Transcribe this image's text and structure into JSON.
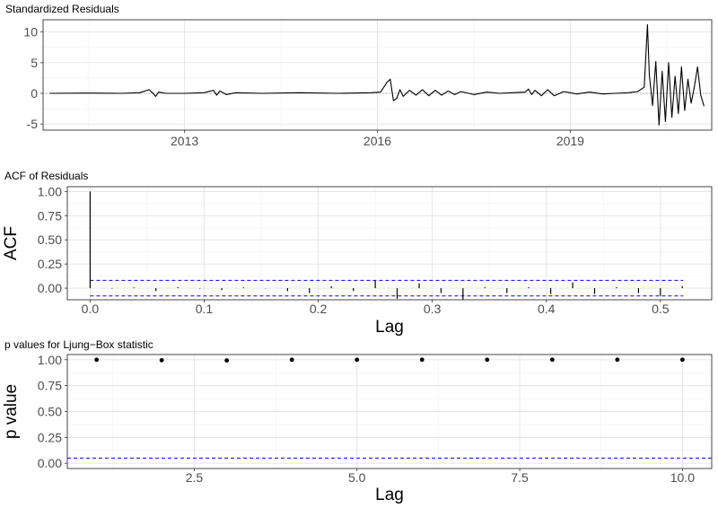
{
  "chart_data": [
    {
      "type": "line",
      "title": "Standardized Residuals",
      "xlabel": "",
      "ylabel": "",
      "x_ticks": [
        2013,
        2016,
        2019
      ],
      "y_ticks": [
        -5,
        0,
        5,
        10
      ],
      "xlim": [
        2010.8,
        2021.2
      ],
      "ylim": [
        -6,
        12
      ],
      "grid": true,
      "reference_line": {
        "y": 0,
        "style": "dotted",
        "color": "#9e9e9e"
      },
      "series": [
        {
          "color": "#000000",
          "x": [
            2010.9,
            2011.5,
            2012.0,
            2012.3,
            2012.45,
            2012.5,
            2012.55,
            2012.6,
            2012.7,
            2013.0,
            2013.3,
            2013.45,
            2013.5,
            2013.55,
            2013.65,
            2013.8,
            2014.2,
            2014.8,
            2015.4,
            2015.9,
            2016.05,
            2016.15,
            2016.2,
            2016.25,
            2016.3,
            2016.35,
            2016.4,
            2016.5,
            2016.6,
            2016.7,
            2016.8,
            2016.9,
            2017.0,
            2017.1,
            2017.2,
            2017.3,
            2017.5,
            2017.7,
            2017.9,
            2018.1,
            2018.3,
            2018.35,
            2018.4,
            2018.45,
            2018.55,
            2018.65,
            2018.75,
            2018.9,
            2019.1,
            2019.3,
            2019.5,
            2019.7,
            2019.9,
            2020.05,
            2020.15,
            2020.2,
            2020.23,
            2020.28,
            2020.33,
            2020.38,
            2020.43,
            2020.48,
            2020.53,
            2020.58,
            2020.63,
            2020.68,
            2020.73,
            2020.78,
            2020.83,
            2020.88,
            2020.93,
            2020.98,
            2021.03,
            2021.08
          ],
          "y": [
            0,
            0.05,
            0,
            0.1,
            0.6,
            0.1,
            -0.5,
            0.2,
            0,
            0,
            0.1,
            0.5,
            -0.3,
            0.4,
            -0.2,
            0.1,
            0,
            0.1,
            0,
            0.1,
            0.2,
            1.8,
            2.3,
            -1.2,
            -0.8,
            0.6,
            -0.5,
            0.5,
            -0.3,
            0.6,
            -0.4,
            0.5,
            -0.3,
            0.4,
            -0.2,
            0.3,
            -0.2,
            0.2,
            0,
            0.1,
            0.2,
            0.7,
            -0.2,
            0.5,
            -0.4,
            0.6,
            -0.4,
            0.3,
            -0.1,
            0.2,
            -0.1,
            0,
            0.1,
            0.3,
            1.0,
            11.2,
            3.0,
            -2.0,
            5.2,
            -5.2,
            3.6,
            -4.6,
            5.0,
            -3.9,
            2.8,
            -3.3,
            4.3,
            -2.8,
            2.3,
            -1.6,
            1.1,
            4.3,
            -0.3,
            -2.1
          ]
        }
      ]
    },
    {
      "type": "bar",
      "title": "ACF of Residuals",
      "xlabel": "Lag",
      "ylabel": "ACF",
      "x_ticks": [
        0.0,
        0.1,
        0.2,
        0.3,
        0.4,
        0.5
      ],
      "y_ticks": [
        0.0,
        0.25,
        0.5,
        0.75,
        1.0
      ],
      "xlim": [
        -0.02,
        0.545
      ],
      "ylim": [
        -0.12,
        1.05
      ],
      "grid": true,
      "confidence_band": {
        "upper": 0.08,
        "lower": -0.08,
        "style": "dashed",
        "color": "#1f1fff"
      },
      "series": [
        {
          "color": "#000000",
          "x": [
            0.0,
            0.0192,
            0.0385,
            0.0577,
            0.0769,
            0.0962,
            0.1154,
            0.1346,
            0.1538,
            0.1731,
            0.1923,
            0.2115,
            0.2308,
            0.25,
            0.2692,
            0.2885,
            0.3077,
            0.3269,
            0.3462,
            0.3654,
            0.3846,
            0.4038,
            0.4231,
            0.4423,
            0.4615,
            0.4808,
            0.5,
            0.5192
          ],
          "values": [
            1.0,
            -0.005,
            0.008,
            -0.03,
            0.01,
            -0.005,
            -0.02,
            0.008,
            -0.003,
            -0.03,
            -0.05,
            0.02,
            -0.03,
            0.08,
            -0.11,
            0.05,
            -0.05,
            -0.12,
            0.01,
            -0.05,
            0.01,
            -0.06,
            0.06,
            -0.06,
            0.01,
            -0.05,
            -0.08,
            0.02
          ]
        }
      ]
    },
    {
      "type": "scatter",
      "title": "p values for Ljung−Box statistic",
      "xlabel": "Lag",
      "ylabel": "p value",
      "x_ticks": [
        2.5,
        5.0,
        7.5,
        10.0
      ],
      "y_ticks": [
        0.0,
        0.25,
        0.5,
        0.75,
        1.0
      ],
      "xlim": [
        0.55,
        10.45
      ],
      "ylim": [
        -0.05,
        1.05
      ],
      "grid": true,
      "reference_line": {
        "y": 0.05,
        "style": "dashed",
        "color": "#1f1fff"
      },
      "series": [
        {
          "color": "#000000",
          "x": [
            1,
            2,
            3,
            4,
            5,
            6,
            7,
            8,
            9,
            10
          ],
          "y": [
            1.0,
            0.995,
            0.993,
            1.0,
            1.0,
            1.0,
            1.0,
            1.0,
            1.0,
            1.0
          ]
        }
      ]
    }
  ]
}
